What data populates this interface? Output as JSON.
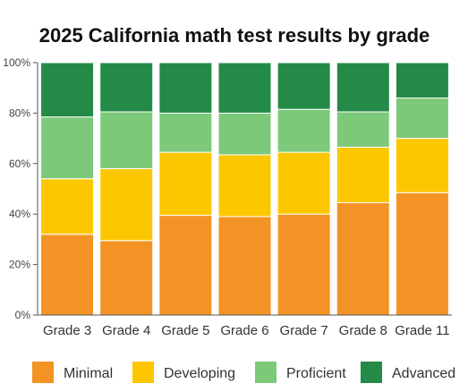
{
  "chart_data": {
    "type": "bar",
    "stacked": true,
    "title": "2025 California math test results by grade",
    "xlabel": "",
    "ylabel": "",
    "ylim": [
      0,
      100
    ],
    "y_ticks": [
      "0%",
      "20%",
      "40%",
      "60%",
      "80%",
      "100%"
    ],
    "y_tick_values": [
      0,
      20,
      40,
      60,
      80,
      100
    ],
    "categories": [
      "Grade 3",
      "Grade 4",
      "Grade 5",
      "Grade 6",
      "Grade 7",
      "Grade 8",
      "Grade 11"
    ],
    "series": [
      {
        "name": "Minimal",
        "color": "#f39325",
        "values": [
          32,
          29.5,
          39.5,
          39,
          40,
          44.5,
          48.5
        ]
      },
      {
        "name": "Developing",
        "color": "#fdc700",
        "values": [
          22,
          28.5,
          25,
          24.5,
          24.5,
          22,
          21.5
        ]
      },
      {
        "name": "Proficient",
        "color": "#7cc97a",
        "values": [
          24.5,
          22.5,
          15.5,
          16.5,
          17,
          14,
          16
        ]
      },
      {
        "name": "Advanced",
        "color": "#238a47",
        "values": [
          21.5,
          19.5,
          20,
          20,
          18.5,
          19.5,
          14
        ]
      }
    ],
    "grid": false,
    "legend_position": "bottom"
  }
}
